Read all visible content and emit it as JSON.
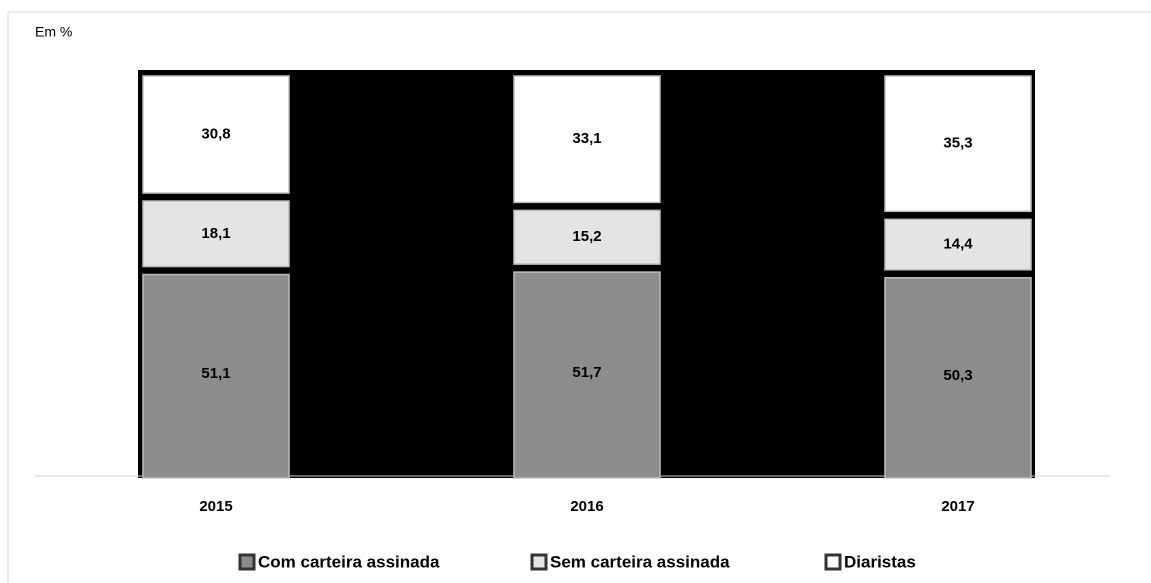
{
  "chart_data": {
    "type": "stacked_bar",
    "subtitle": "Em %",
    "categories": [
      "2015",
      "2016",
      "2017"
    ],
    "series": [
      {
        "name": "Com carteira assinada",
        "color": "#8c8c8c",
        "values": [
          51.1,
          51.7,
          50.3
        ],
        "value_labels": [
          "51,1",
          "51,7",
          "50,3"
        ]
      },
      {
        "name": "Sem carteira assinada",
        "color": "#e4e4e4",
        "values": [
          18.1,
          15.2,
          14.4
        ],
        "value_labels": [
          "18,1",
          "15,2",
          "14,4"
        ]
      },
      {
        "name": "Diaristas",
        "color": "#ffffff",
        "values": [
          30.8,
          33.1,
          35.3
        ],
        "value_labels": [
          "30,8",
          "33,1",
          "35,3"
        ]
      }
    ],
    "ylim": [
      0,
      100
    ],
    "plot_background": "#000000"
  }
}
